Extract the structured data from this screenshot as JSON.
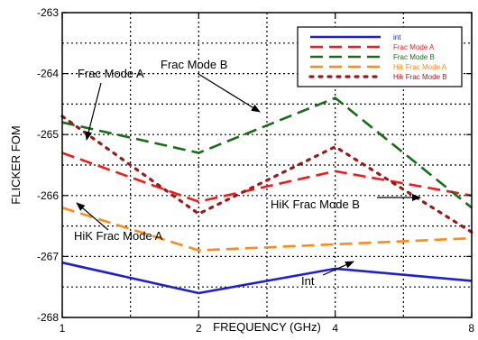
{
  "chart_data": {
    "type": "line",
    "title": "",
    "xlabel": "FREQUENCY (GHz)",
    "ylabel": "FLICKER FOM",
    "xscale": "log2",
    "xlim": [
      1,
      8
    ],
    "ylim": [
      -268,
      -263
    ],
    "xticks": [
      1,
      2,
      4,
      8
    ],
    "xtick_labels": [
      "1",
      "2",
      "4",
      "8"
    ],
    "yticks": [
      -263,
      -264,
      -265,
      -266,
      -267,
      -268
    ],
    "ytick_labels": [
      "-263",
      "-264",
      "-265",
      "-266",
      "-267",
      "-268"
    ],
    "grid": true,
    "legend_position": "top-right",
    "x": [
      1,
      2,
      4,
      8
    ],
    "series": [
      {
        "name": "int",
        "values": [
          -267.1,
          -267.6,
          -267.2,
          -267.4
        ],
        "color": "#1f1fcc",
        "style": "solid"
      },
      {
        "name": "Frac Mode A",
        "values": [
          -265.3,
          -266.1,
          -265.6,
          -266.0
        ],
        "color": "#ee1c1c",
        "style": "dashed"
      },
      {
        "name": "Frac Mode B",
        "values": [
          -264.8,
          -265.3,
          -264.4,
          -266.2
        ],
        "color": "#1a6b1a",
        "style": "dashed"
      },
      {
        "name": "Hik Frac Mode A",
        "values": [
          -266.2,
          -266.9,
          -266.8,
          -266.7
        ],
        "color": "#ff8a1a",
        "style": "dashed"
      },
      {
        "name": "Hik Frac Mode B",
        "values": [
          -264.7,
          -266.3,
          -265.2,
          -266.6
        ],
        "color": "#991a1a",
        "style": "dotted"
      }
    ],
    "annotations": [
      {
        "text": "Frac Mode A"
      },
      {
        "text": "Frac Mode B"
      },
      {
        "text": "HiK Frac Mode B"
      },
      {
        "text": "HiK Frac Mode A"
      },
      {
        "text": "Int"
      }
    ]
  }
}
